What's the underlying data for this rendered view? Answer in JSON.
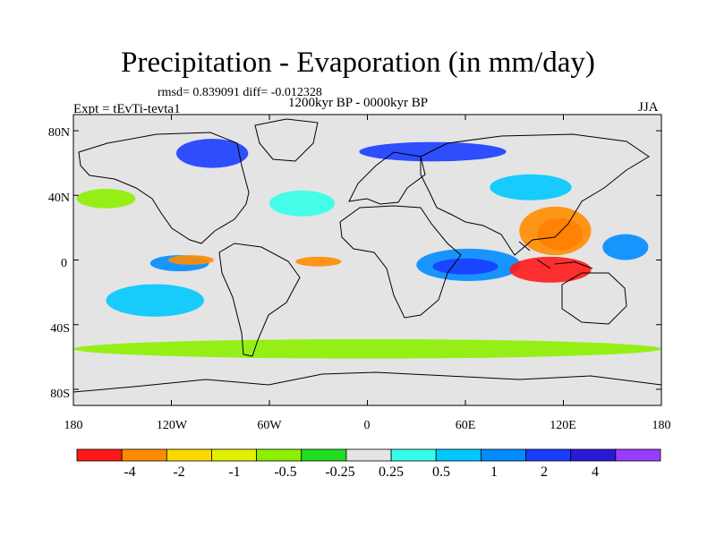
{
  "title": "Precipitation - Evaporation (in mm/day)",
  "stats": "rmsd= 0.839091 diff= -0.012328",
  "period": "1200kyr BP - 0000kyr BP",
  "experiment": "Expt = tEvTi-tevta1",
  "season": "JJA",
  "colors": {
    "background": "#e4e4e4",
    "coast": "#000000",
    "bins": [
      "#ff1a1a",
      "#ff8c00",
      "#ffd700",
      "#e0f000",
      "#8cf000",
      "#22dc22",
      "#e4e4e4",
      "#33ffe8",
      "#00c8ff",
      "#008cff",
      "#1a3cff",
      "#2a1ad8",
      "#9a3cff"
    ]
  },
  "map": {
    "lon_ticks": [
      "180",
      "120W",
      "60W",
      "0",
      "60E",
      "120E",
      "180"
    ],
    "lat_ticks": [
      "80N",
      "40N",
      "0",
      "40S",
      "80S"
    ]
  },
  "colorbar": {
    "labels": [
      "-4",
      "-2",
      "-1",
      "-0.5",
      "-0.25",
      "0.25",
      "0.5",
      "1",
      "2",
      "4"
    ]
  },
  "field_blobs": [
    {
      "name": "tropical-atlantic-pacific-ocean-east-wet",
      "lon": -115,
      "lat": -2,
      "rx": 18,
      "ry": 5,
      "bin": 9
    },
    {
      "name": "east-pacific-drying",
      "lon": -108,
      "lat": 0,
      "rx": 14,
      "ry": 3,
      "bin": 1
    },
    {
      "name": "atlantic-itcz-drying",
      "lon": -30,
      "lat": -1,
      "rx": 14,
      "ry": 3,
      "bin": 1
    },
    {
      "name": "indian-ocean-wet",
      "lon": 62,
      "lat": -3,
      "rx": 32,
      "ry": 10,
      "bin": 9
    },
    {
      "name": "indian-ocean-wet-core",
      "lon": 60,
      "lat": -4,
      "rx": 20,
      "ry": 5,
      "bin": 10
    },
    {
      "name": "maritime-continent-dry",
      "lon": 112,
      "lat": -6,
      "rx": 25,
      "ry": 8,
      "bin": 0
    },
    {
      "name": "south-china-sea-dry",
      "lon": 118,
      "lat": 16,
      "rx": 14,
      "ry": 10,
      "bin": 0
    },
    {
      "name": "west-pacific-warm",
      "lon": 115,
      "lat": 18,
      "rx": 22,
      "ry": 15,
      "bin": 1
    },
    {
      "name": "west-pacific-wet",
      "lon": 158,
      "lat": 8,
      "rx": 14,
      "ry": 8,
      "bin": 9
    },
    {
      "name": "canadian-arctic-wet",
      "lon": -95,
      "lat": 66,
      "rx": 22,
      "ry": 9,
      "bin": 10
    },
    {
      "name": "siberia-wet",
      "lon": 40,
      "lat": 67,
      "rx": 45,
      "ry": 6,
      "bin": 10
    },
    {
      "name": "east-asia-wet",
      "lon": 100,
      "lat": 45,
      "rx": 25,
      "ry": 8,
      "bin": 8
    },
    {
      "name": "southern-ocean-dry-band",
      "lon": 0,
      "lat": -55,
      "rx": 180,
      "ry": 6,
      "bin": 4
    },
    {
      "name": "south-pacific-wet",
      "lon": -130,
      "lat": -25,
      "rx": 30,
      "ry": 10,
      "bin": 8
    },
    {
      "name": "north-atlantic-wet",
      "lon": -40,
      "lat": 35,
      "rx": 20,
      "ry": 8,
      "bin": 7
    },
    {
      "name": "north-pacific-dry",
      "lon": -160,
      "lat": 38,
      "rx": 18,
      "ry": 6,
      "bin": 4
    }
  ]
}
